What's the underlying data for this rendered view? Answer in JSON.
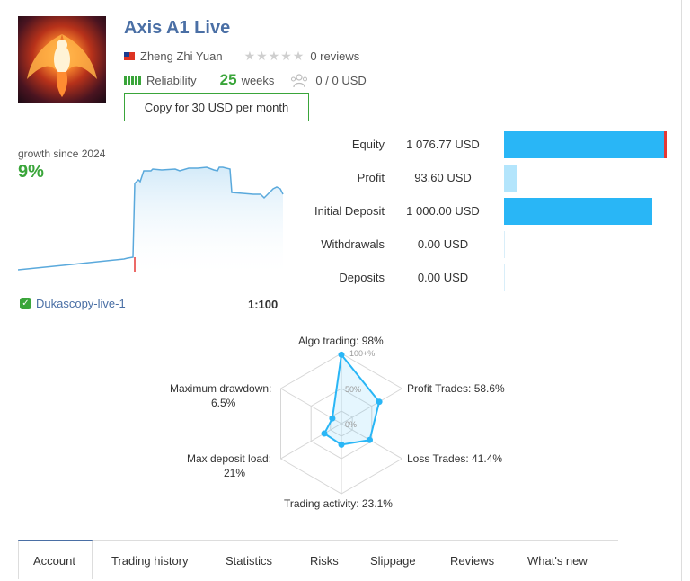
{
  "signal": {
    "title": "Axis A1 Live",
    "author": "Zheng Zhi Yuan",
    "reviews": "0 reviews",
    "reliability_label": "Reliability",
    "weeks_value": "25",
    "weeks_label": "weeks",
    "subscribers": "0 / 0 USD",
    "copy_button": "Copy for 30 USD per month",
    "reliability_level": 5,
    "rating": 0
  },
  "growth": {
    "label": "growth since 2024",
    "value": "9%"
  },
  "server": {
    "name": "Dukascopy-live-1",
    "leverage": "1:100"
  },
  "stats": [
    {
      "label": "Equity",
      "value": "1 076.77 USD",
      "fraction": 1.0
    },
    {
      "label": "Profit",
      "value": "93.60 USD",
      "fraction": 0.087
    },
    {
      "label": "Initial Deposit",
      "value": "1 000.00 USD",
      "fraction": 0.929
    },
    {
      "label": "Withdrawals",
      "value": "0.00 USD",
      "fraction": 0
    },
    {
      "label": "Deposits",
      "value": "0.00 USD",
      "fraction": 0
    }
  ],
  "radar": {
    "algo_trading": "Algo trading: 98%",
    "profit_trades": "Profit Trades: 58.6%",
    "loss_trades": "Loss Trades: 41.4%",
    "trading_activity": "Trading activity: 23.1%",
    "max_deposit_load_1": "Max deposit load:",
    "max_deposit_load_2": "21%",
    "max_drawdown_1": "Maximum drawdown:",
    "max_drawdown_2": "6.5%",
    "scale_100": "100+%",
    "scale_50": "50%",
    "scale_0": "0%",
    "values": [
      0.98,
      0.586,
      0.414,
      0.231,
      0.21,
      0.065
    ]
  },
  "tabs": [
    "Account",
    "Trading history",
    "Statistics",
    "Risks",
    "Slippage",
    "Reviews",
    "What's new"
  ],
  "colors": {
    "accent": "#4a6fa5",
    "green": "#3aa53a",
    "bar_blue": "#29b6f6",
    "bar_light": "#b3e5fc",
    "red": "#e53935"
  }
}
